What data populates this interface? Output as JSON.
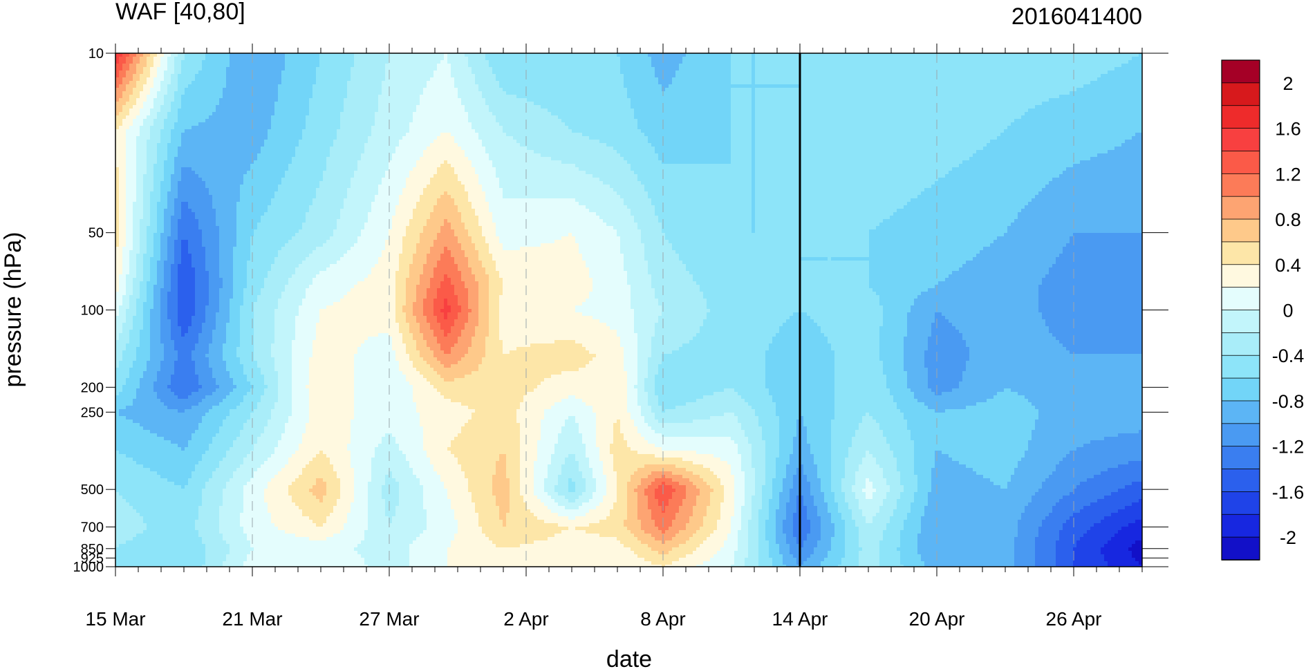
{
  "chart_data": {
    "type": "heatmap",
    "title": "WAF [40,80]",
    "subtitle": "2016041400",
    "xlabel": "date",
    "ylabel": "pressure (hPa)",
    "x_ticks": [
      "15 Mar",
      "21 Mar",
      "27 Mar",
      "2 Apr",
      "8 Apr",
      "14 Apr",
      "20 Apr",
      "26 Apr"
    ],
    "x_tick_days": [
      0,
      6,
      12,
      18,
      24,
      30,
      36,
      42
    ],
    "x_range_days": [
      0,
      45
    ],
    "y_ticks": [
      "10",
      "50",
      "100",
      "200",
      "250",
      "500",
      "700",
      "850",
      "925",
      "1000"
    ],
    "y_range": [
      10,
      1000
    ],
    "y_scale": "log",
    "y_reversed": true,
    "current_date_line": "14 Apr",
    "colorbar": {
      "labels": [
        "2",
        "1.6",
        "1.2",
        "0.8",
        "0.4",
        "0",
        "-0.4",
        "-0.8",
        "-1.2",
        "-1.6",
        "-2"
      ],
      "levels": [
        2.2,
        2.0,
        1.8,
        1.6,
        1.4,
        1.2,
        1.0,
        0.8,
        0.6,
        0.4,
        0.2,
        0.0,
        -0.2,
        -0.4,
        -0.6,
        -0.8,
        -1.0,
        -1.2,
        -1.4,
        -1.6,
        -1.8,
        -2.0,
        -2.2
      ],
      "colors": [
        "#a50026",
        "#d7191c",
        "#ee2b2b",
        "#f84040",
        "#fb5a48",
        "#fc7b58",
        "#fda472",
        "#fec98a",
        "#fde6a8",
        "#fff9e0",
        "#e4fdfd",
        "#c2f5fb",
        "#a9edf9",
        "#8de4f9",
        "#72d5f8",
        "#5cb5f5",
        "#4a9af2",
        "#3a7ef0",
        "#2b60ed",
        "#1f43e8",
        "#1727e0",
        "#1210c8"
      ]
    },
    "field": {
      "x_days": [
        0,
        3,
        6,
        9,
        12,
        14.5,
        17,
        20,
        22,
        24,
        27,
        30,
        33,
        36,
        39,
        42,
        45
      ],
      "pressure": [
        10,
        20,
        50,
        80,
        100,
        150,
        200,
        250,
        350,
        500,
        700,
        850,
        1000
      ],
      "values": [
        [
          1.6,
          -0.4,
          -1.0,
          -0.6,
          -0.2,
          0.0,
          -0.6,
          -0.6,
          -0.6,
          -0.9,
          -0.6,
          -0.6,
          -0.4,
          -0.4,
          -0.5,
          -0.5,
          -0.6
        ],
        [
          0.4,
          -0.8,
          -0.9,
          -0.5,
          -0.1,
          0.2,
          -0.2,
          -0.4,
          -0.5,
          -0.7,
          -0.6,
          -0.6,
          -0.4,
          -0.5,
          -0.6,
          -0.7,
          -0.8
        ],
        [
          0.5,
          -1.4,
          -0.6,
          -0.3,
          0.2,
          0.9,
          0.1,
          0.2,
          0.0,
          -0.4,
          -0.6,
          -0.6,
          -0.6,
          -0.7,
          -0.8,
          -1.0,
          -1.0
        ],
        [
          0.3,
          -1.6,
          -0.5,
          0.1,
          0.3,
          1.3,
          0.4,
          0.3,
          0.1,
          -0.3,
          -0.5,
          -0.6,
          -0.6,
          -0.8,
          -0.9,
          -1.1,
          -1.1
        ],
        [
          0.1,
          -1.6,
          -0.4,
          0.2,
          0.3,
          1.5,
          0.3,
          0.2,
          0.1,
          -0.2,
          -0.5,
          -0.6,
          -0.5,
          -1.0,
          -0.9,
          -1.1,
          -1.1
        ],
        [
          -0.3,
          -1.3,
          -0.4,
          0.3,
          0.1,
          1.0,
          0.4,
          0.5,
          0.3,
          -0.4,
          -0.5,
          -0.7,
          -0.5,
          -1.1,
          -0.9,
          -1.0,
          -1.0
        ],
        [
          -0.5,
          -1.4,
          -0.6,
          0.4,
          0.0,
          0.5,
          0.5,
          0.3,
          0.4,
          -0.6,
          -0.4,
          -0.8,
          -0.4,
          -1.1,
          -0.8,
          -0.9,
          -0.9
        ],
        [
          -0.8,
          -1.0,
          -0.4,
          0.3,
          0.1,
          0.3,
          0.5,
          0.0,
          0.4,
          -0.4,
          -0.2,
          -0.8,
          -0.4,
          -0.8,
          -0.7,
          -0.9,
          -0.9
        ],
        [
          -0.6,
          -0.8,
          -0.2,
          0.4,
          -0.1,
          0.4,
          0.6,
          -0.2,
          0.5,
          0.2,
          0.1,
          -0.9,
          -0.2,
          -0.8,
          -0.7,
          -1.0,
          -1.1
        ],
        [
          -0.4,
          -0.6,
          0.1,
          0.7,
          -0.3,
          0.2,
          0.7,
          -0.5,
          0.4,
          1.4,
          0.3,
          -1.2,
          0.1,
          -0.9,
          -0.8,
          -1.2,
          -1.5
        ],
        [
          -0.3,
          -0.5,
          0.1,
          0.4,
          -0.2,
          0.1,
          0.6,
          0.4,
          0.5,
          1.1,
          0.2,
          -1.4,
          -0.2,
          -1.0,
          -0.9,
          -1.5,
          -1.9
        ],
        [
          -0.4,
          -0.6,
          0.0,
          0.1,
          -0.1,
          0.2,
          0.4,
          0.3,
          0.3,
          0.7,
          0.1,
          -1.2,
          -0.3,
          -1.0,
          -0.9,
          -1.6,
          -2.1
        ],
        [
          -0.5,
          -0.6,
          0.1,
          0.2,
          -0.1,
          0.2,
          0.3,
          0.2,
          0.2,
          0.4,
          0.0,
          -1.0,
          -0.3,
          -0.9,
          -0.9,
          -1.6,
          -2.0
        ]
      ]
    }
  }
}
